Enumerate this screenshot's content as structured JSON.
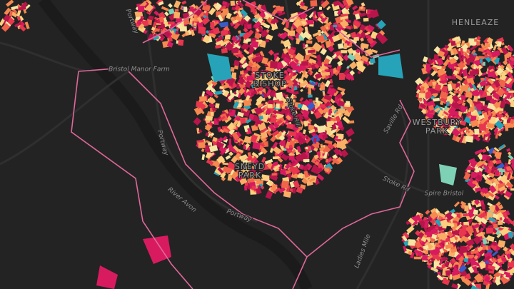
{
  "map": {
    "labels": [
      "Portway",
      "Bristol Manor Farm",
      "STOKE BISHOP",
      "Stoke Hill",
      "SNEYD PARK",
      "Portway",
      "River Avon",
      "Portway",
      "Stoke Rd",
      "Saville Rd",
      "WESTBURY PARK",
      "Ladies Mile",
      "Spire Bristol",
      "HENLEAZE"
    ]
  }
}
